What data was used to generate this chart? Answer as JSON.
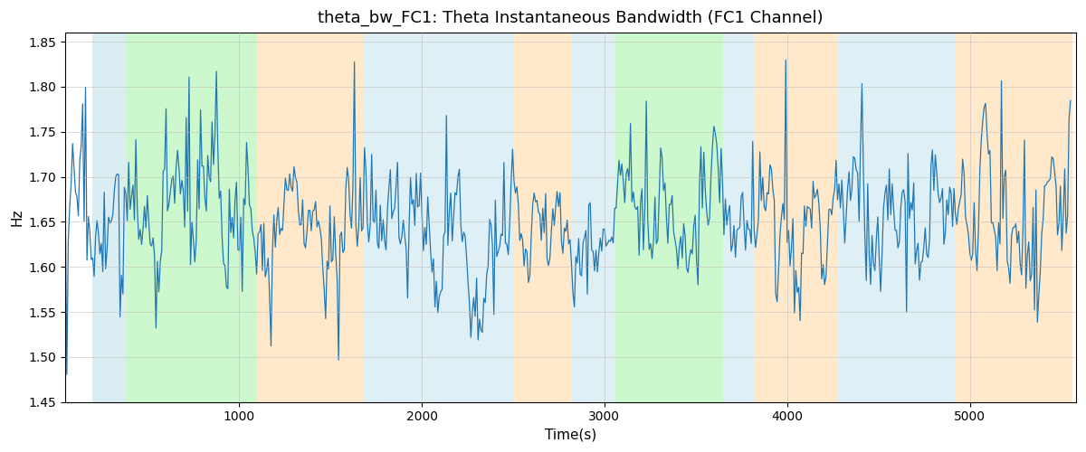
{
  "title": "theta_bw_FC1: Theta Instantaneous Bandwidth (FC1 Channel)",
  "xlabel": "Time(s)",
  "ylabel": "Hz",
  "ylim": [
    1.45,
    1.86
  ],
  "xlim": [
    50,
    5580
  ],
  "line_color": "#1f77b4",
  "line_width": 0.9,
  "background_color": "#ffffff",
  "grid_color": "#bbbbbb",
  "grid_alpha": 0.6,
  "grid_linestyle": "-",
  "seed": 17,
  "n_points": 700,
  "x_start": 50,
  "x_end": 5550,
  "base_mean": 1.645,
  "base_std": 0.045,
  "spike_prob": 0.06,
  "spike_magnitude": 0.09,
  "bands": [
    {
      "start": 195,
      "end": 380,
      "color": "#add8e6",
      "alpha": 0.45
    },
    {
      "start": 380,
      "end": 1100,
      "color": "#90ee90",
      "alpha": 0.45
    },
    {
      "start": 1100,
      "end": 1680,
      "color": "#ffd8a0",
      "alpha": 0.55
    },
    {
      "start": 1680,
      "end": 2500,
      "color": "#add8e6",
      "alpha": 0.4
    },
    {
      "start": 2500,
      "end": 2820,
      "color": "#ffd8a0",
      "alpha": 0.55
    },
    {
      "start": 2820,
      "end": 3060,
      "color": "#add8e6",
      "alpha": 0.4
    },
    {
      "start": 3060,
      "end": 3650,
      "color": "#90ee90",
      "alpha": 0.45
    },
    {
      "start": 3650,
      "end": 3820,
      "color": "#add8e6",
      "alpha": 0.4
    },
    {
      "start": 3820,
      "end": 4280,
      "color": "#ffd8a0",
      "alpha": 0.55
    },
    {
      "start": 4280,
      "end": 4920,
      "color": "#add8e6",
      "alpha": 0.4
    },
    {
      "start": 4920,
      "end": 5560,
      "color": "#ffd8a0",
      "alpha": 0.55
    }
  ],
  "yticks": [
    1.45,
    1.5,
    1.55,
    1.6,
    1.65,
    1.7,
    1.75,
    1.8,
    1.85
  ],
  "xticks": [
    1000,
    2000,
    3000,
    4000,
    5000
  ],
  "figsize": [
    12.0,
    5.0
  ],
  "dpi": 100
}
